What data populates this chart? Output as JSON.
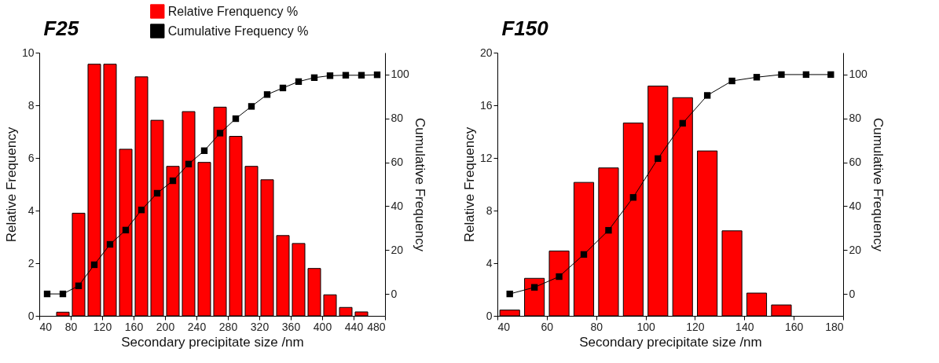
{
  "chart_data": [
    {
      "type": "bar",
      "title": "F25",
      "xlabel": "Secondary precipitate size /nm",
      "ylabel": "Relative Frequency",
      "y2label": "Cumulative Frequency",
      "x": [
        70,
        90,
        110,
        130,
        150,
        170,
        190,
        210,
        230,
        250,
        270,
        290,
        310,
        330,
        350,
        370,
        390,
        410,
        430,
        450
      ],
      "xlim": [
        40,
        480
      ],
      "xticks": [
        40,
        80,
        120,
        160,
        200,
        240,
        280,
        320,
        360,
        400,
        440,
        480
      ],
      "ylim": [
        0,
        10
      ],
      "yticks": [
        0,
        2,
        4,
        6,
        8,
        10
      ],
      "y2lim": [
        -10,
        110
      ],
      "y2ticks": [
        0,
        20,
        40,
        60,
        80,
        100
      ],
      "legend": "top",
      "marker": "square",
      "grid": false,
      "series": [
        {
          "name": "Relative Frenquency %",
          "color": "#ff0000",
          "values": [
            0.14,
            3.9,
            9.56,
            9.56,
            6.33,
            9.08,
            7.43,
            5.68,
            7.76,
            5.83,
            7.93,
            6.82,
            5.68,
            5.17,
            3.05,
            2.75,
            1.8,
            0.8,
            0.32,
            0.15
          ]
        },
        {
          "name": "Cumulative Frequency %",
          "type": "line",
          "axis": "y2",
          "color": "#000000",
          "x": [
            50,
            70,
            90,
            110,
            130,
            150,
            170,
            190,
            210,
            230,
            250,
            270,
            290,
            310,
            330,
            350,
            370,
            390,
            410,
            430,
            450,
            470
          ],
          "values": [
            0,
            0,
            3.7,
            13.3,
            22.6,
            29.1,
            38.3,
            45.9,
            51.6,
            59.2,
            65.3,
            73.3,
            79.9,
            85.5,
            90.9,
            93.9,
            96.8,
            98.6,
            99.5,
            99.7,
            99.7,
            99.9
          ]
        }
      ]
    },
    {
      "type": "bar",
      "title": "F150",
      "xlabel": "Secondary precipitate size /nm",
      "ylabel": "Relative Frequency",
      "y2label": "Cumulative Frequency",
      "x": [
        45,
        55,
        65,
        75,
        85,
        95,
        105,
        115,
        125,
        135,
        145,
        155
      ],
      "xlim": [
        40,
        180
      ],
      "xticks": [
        40,
        60,
        80,
        100,
        120,
        140,
        160,
        180
      ],
      "ylim": [
        0,
        20
      ],
      "yticks": [
        0,
        4,
        8,
        12,
        16,
        20
      ],
      "y2lim": [
        -10,
        110
      ],
      "y2ticks": [
        0,
        20,
        40,
        60,
        80,
        100
      ],
      "marker": "square",
      "grid": false,
      "series": [
        {
          "color": "#ff0000",
          "values": [
            0.44,
            2.85,
            4.93,
            10.14,
            11.24,
            14.65,
            17.46,
            16.58,
            12.53,
            6.46,
            1.73,
            0.83
          ]
        },
        {
          "type": "line",
          "axis": "y2",
          "color": "#000000",
          "x": [
            45,
            55,
            65,
            75,
            85,
            95,
            105,
            115,
            125,
            135,
            145,
            155,
            165,
            175
          ],
          "values": [
            0,
            3,
            7.9,
            18,
            29,
            44,
            61.7,
            77.8,
            90.5,
            97.1,
            98.8,
            100,
            100,
            100
          ]
        }
      ]
    }
  ]
}
